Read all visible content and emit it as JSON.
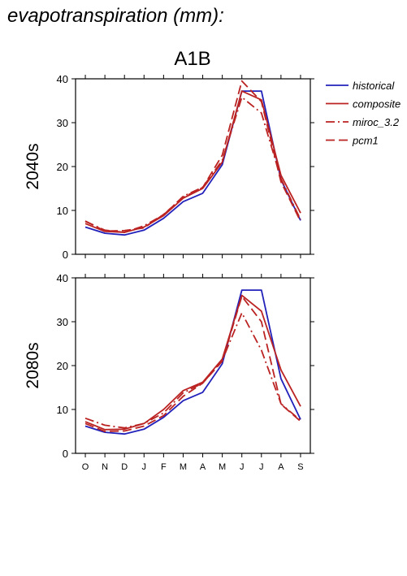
{
  "figure": {
    "title": "evapotranspiration (mm):",
    "scenario": "A1B"
  },
  "legend": [
    {
      "name": "historical",
      "color": "#2222bb",
      "dash": "solid"
    },
    {
      "name": "composite",
      "color": "#bb2222",
      "dash": "solid"
    },
    {
      "name": "miroc_3.2",
      "color": "#bb2222",
      "dash": "dashdot"
    },
    {
      "name": "pcm1",
      "color": "#bb2222",
      "dash": "dash"
    }
  ],
  "chart_data": [
    {
      "type": "line",
      "row_label": "2040s",
      "categories": [
        "O",
        "N",
        "D",
        "J",
        "F",
        "M",
        "A",
        "M",
        "J",
        "J",
        "A",
        "S"
      ],
      "ylim": [
        0,
        40
      ],
      "yticks": [
        0,
        10,
        20,
        30,
        40
      ],
      "grid": false,
      "legend_position": "right",
      "series": [
        {
          "name": "historical",
          "values": [
            6.2,
            4.8,
            4.4,
            5.5,
            8.2,
            12.0,
            13.9,
            20.4,
            37.2,
            37.2,
            17.0,
            7.7
          ]
        },
        {
          "name": "composite",
          "values": [
            7.0,
            5.2,
            5.0,
            6.2,
            8.8,
            12.8,
            15.0,
            21.0,
            37.2,
            35.2,
            18.0,
            9.4
          ]
        },
        {
          "name": "miroc_3.2",
          "values": [
            7.5,
            5.5,
            5.0,
            6.5,
            9.0,
            13.2,
            15.3,
            21.4,
            35.8,
            32.2,
            17.2,
            7.9
          ]
        },
        {
          "name": "pcm1",
          "values": [
            7.6,
            5.3,
            5.4,
            6.0,
            9.1,
            13.0,
            15.2,
            22.6,
            39.5,
            34.8,
            16.5,
            7.5
          ]
        }
      ]
    },
    {
      "type": "line",
      "row_label": "2080s",
      "categories": [
        "O",
        "N",
        "D",
        "J",
        "F",
        "M",
        "A",
        "M",
        "J",
        "J",
        "A",
        "S"
      ],
      "ylim": [
        0,
        40
      ],
      "yticks": [
        0,
        10,
        20,
        30,
        40
      ],
      "grid": false,
      "series": [
        {
          "name": "historical",
          "values": [
            6.2,
            4.8,
            4.4,
            5.5,
            8.2,
            12.0,
            13.9,
            20.4,
            37.2,
            37.2,
            17.0,
            7.7
          ]
        },
        {
          "name": "composite",
          "values": [
            7.2,
            5.4,
            5.5,
            6.8,
            10.0,
            14.3,
            16.2,
            21.5,
            36.0,
            32.4,
            19.0,
            10.7
          ]
        },
        {
          "name": "miroc_3.2",
          "values": [
            8.0,
            6.4,
            5.8,
            6.8,
            9.2,
            13.8,
            16.0,
            21.2,
            32.0,
            23.5,
            11.3,
            7.5
          ]
        },
        {
          "name": "pcm1",
          "values": [
            6.8,
            5.0,
            5.1,
            6.2,
            8.6,
            13.0,
            16.0,
            21.0,
            35.8,
            30.0,
            11.2,
            7.3
          ]
        }
      ]
    }
  ]
}
